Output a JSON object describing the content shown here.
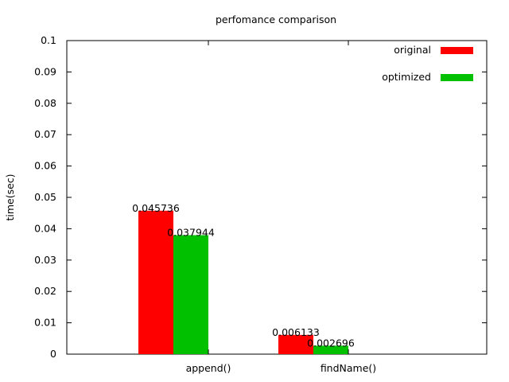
{
  "chart_data": {
    "type": "bar",
    "title": "perfomance comparison",
    "xlabel": "",
    "ylabel": "time(sec)",
    "ylim": [
      0,
      0.1
    ],
    "yticks": [
      0,
      0.01,
      0.02,
      0.03,
      0.04,
      0.05,
      0.06,
      0.07,
      0.08,
      0.09,
      0.1
    ],
    "ytick_labels": [
      "0",
      "0.01",
      "0.02",
      "0.03",
      "0.04",
      "0.05",
      "0.06",
      "0.07",
      "0.08",
      "0.09",
      "0.1"
    ],
    "categories": [
      "append()",
      "findName()"
    ],
    "series": [
      {
        "name": "original",
        "color": "#ff0000",
        "values": [
          0.045736,
          0.006133
        ],
        "labels": [
          "0.045736",
          "0.006133"
        ]
      },
      {
        "name": "optimized",
        "color": "#00c000",
        "values": [
          0.037944,
          0.002696
        ],
        "labels": [
          "0.037944",
          "0.002696"
        ]
      }
    ],
    "legend": "top-right",
    "grid": false
  }
}
